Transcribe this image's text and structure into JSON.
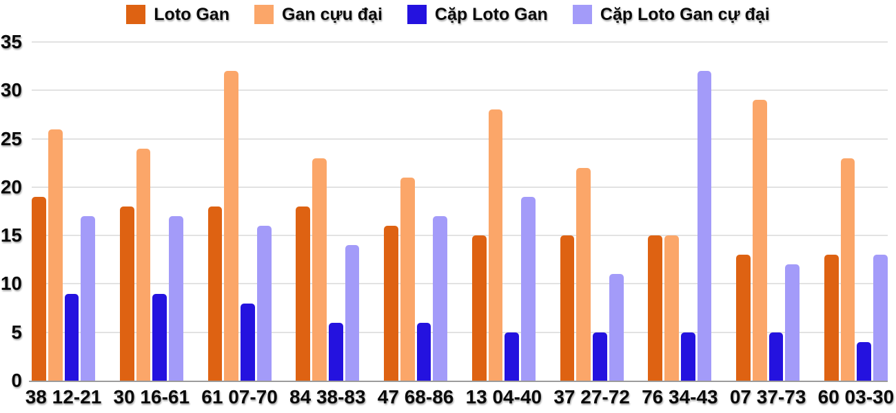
{
  "chart_data": {
    "type": "bar",
    "title": "",
    "xlabel": "",
    "ylabel": "",
    "categories": [
      "38 12-21",
      "30 16-61",
      "61 07-70",
      "84 38-83",
      "47 68-86",
      "13 04-40",
      "37 27-72",
      "76 34-43",
      "07 37-73",
      "60 03-30"
    ],
    "series": [
      {
        "name": "Loto Gan",
        "color": "#DE6212",
        "values": [
          19,
          18,
          18,
          18,
          16,
          15,
          15,
          15,
          13,
          13
        ]
      },
      {
        "name": "Gan cựu đại",
        "color": "#FBA669",
        "values": [
          26,
          24,
          32,
          23,
          21,
          28,
          22,
          15,
          29,
          23
        ]
      },
      {
        "name": "Cặp Loto Gan",
        "color": "#2412DF",
        "values": [
          9,
          9,
          8,
          6,
          6,
          5,
          5,
          5,
          5,
          4
        ]
      },
      {
        "name": "Cặp Loto Gan cự đại",
        "color": "#A39BF9",
        "values": [
          17,
          17,
          16,
          14,
          17,
          19,
          11,
          32,
          12,
          13
        ]
      }
    ],
    "ylim": [
      0,
      35
    ],
    "ytick_step": 5,
    "ytick_labels": [
      "0",
      "5",
      "10",
      "15",
      "20",
      "25",
      "30",
      "35"
    ],
    "grid": true,
    "legend_position": "top-center"
  },
  "colors": {
    "background": "#FFFFFF",
    "gridline": "#E2E2E2",
    "axis_line": "#9B9B9B",
    "label_text": "#0A0A0A"
  }
}
